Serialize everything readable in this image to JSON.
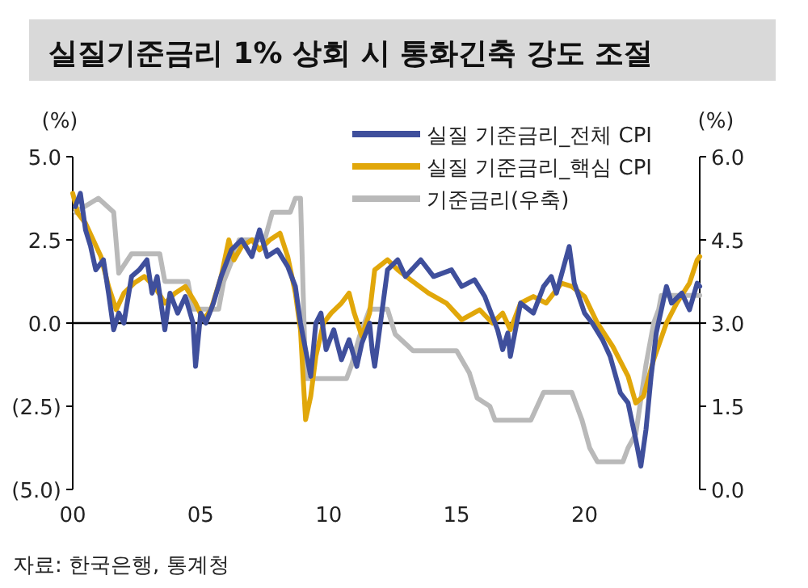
{
  "chart_data": {
    "type": "line",
    "title": "실질기준금리 1% 상회 시 통화긴축 강도 조절",
    "ylabel": "(%)",
    "y2label": "(%)",
    "annotations": [
      "자료: 한국은행, 통계청"
    ],
    "xlim": [
      2000,
      2024.5
    ],
    "xticks": [
      {
        "value": 2000,
        "label": "00"
      },
      {
        "value": 2005,
        "label": "05"
      },
      {
        "value": 2010,
        "label": "10"
      },
      {
        "value": 2015,
        "label": "15"
      },
      {
        "value": 2020,
        "label": "20"
      }
    ],
    "ylim": [
      -5,
      5
    ],
    "yticks": [
      {
        "value": 5,
        "label": "5.0"
      },
      {
        "value": 2.5,
        "label": "2.5"
      },
      {
        "value": 0,
        "label": "0.0"
      },
      {
        "value": -2.5,
        "label": "(2.5)"
      },
      {
        "value": -5,
        "label": "(5.0)"
      }
    ],
    "y2lim": [
      0,
      6
    ],
    "y2ticks": [
      {
        "value": 6,
        "label": "6.0"
      },
      {
        "value": 4.5,
        "label": "4.5"
      },
      {
        "value": 3,
        "label": "3.0"
      },
      {
        "value": 1.5,
        "label": "1.5"
      },
      {
        "value": 0,
        "label": "0.0"
      }
    ],
    "ref_lines": [
      {
        "axis": "y",
        "value": 0,
        "color": "#000000"
      }
    ],
    "legend": "top right",
    "grid": false,
    "series": [
      {
        "name": "실질 기준금리_전체 CPI",
        "color": "#3f4f9c",
        "x": [
          2000.1,
          2000.3,
          2000.5,
          2000.7,
          2000.9,
          2001.2,
          2001.4,
          2001.6,
          2001.8,
          2002.0,
          2002.3,
          2002.6,
          2002.9,
          2003.1,
          2003.3,
          2003.6,
          2003.8,
          2004.1,
          2004.4,
          2004.7,
          2004.8,
          2005.0,
          2005.2,
          2005.5,
          2005.8,
          2006.2,
          2006.6,
          2007.0,
          2007.3,
          2007.6,
          2008.0,
          2008.4,
          2008.7,
          2008.9,
          2009.1,
          2009.3,
          2009.5,
          2009.7,
          2009.9,
          2010.2,
          2010.5,
          2010.8,
          2011.1,
          2011.3,
          2011.6,
          2011.7,
          2011.8,
          2012.3,
          2012.7,
          2013.0,
          2013.6,
          2014.1,
          2014.8,
          2015.2,
          2015.7,
          2016.1,
          2016.6,
          2016.8,
          2017.0,
          2017.1,
          2017.5,
          2018.0,
          2018.4,
          2018.7,
          2018.9,
          2019.4,
          2019.6,
          2020.0,
          2020.3,
          2020.7,
          2021.0,
          2021.4,
          2021.7,
          2022.0,
          2022.2,
          2022.4,
          2022.6,
          2022.8,
          2023.2,
          2023.4,
          2023.8,
          2024.1,
          2024.4,
          2024.5
        ],
        "values": [
          3.5,
          3.9,
          2.8,
          2.3,
          1.6,
          1.9,
          0.9,
          -0.2,
          0.3,
          0.0,
          1.4,
          1.6,
          1.9,
          0.9,
          1.4,
          -0.2,
          0.9,
          0.3,
          0.8,
          0.0,
          -1.3,
          0.3,
          0.0,
          0.6,
          1.4,
          2.2,
          2.5,
          2.0,
          2.8,
          2.0,
          2.2,
          1.7,
          1.1,
          0.0,
          -0.8,
          -1.6,
          0.0,
          0.3,
          -0.8,
          -0.2,
          -1.1,
          -0.5,
          -1.3,
          -0.6,
          0.0,
          -0.8,
          -1.3,
          1.6,
          1.9,
          1.4,
          1.9,
          1.4,
          1.6,
          1.1,
          1.3,
          0.8,
          -0.2,
          -0.8,
          -0.3,
          -1.0,
          0.6,
          0.3,
          1.1,
          1.4,
          0.9,
          2.3,
          1.2,
          0.3,
          0.0,
          -0.5,
          -1.0,
          -2.1,
          -2.4,
          -3.5,
          -4.3,
          -3.2,
          -1.6,
          -0.3,
          1.1,
          0.6,
          0.9,
          0.4,
          1.2,
          1.1
        ]
      },
      {
        "name": "실질 기준금리_핵심 CPI",
        "color": "#e1a70a",
        "x": [
          2000.0,
          2000.2,
          2000.5,
          2000.8,
          2001.1,
          2001.4,
          2001.7,
          2002.0,
          2002.4,
          2002.8,
          2003.2,
          2003.6,
          2004.0,
          2004.4,
          2004.8,
          2005.1,
          2005.4,
          2005.8,
          2006.1,
          2006.3,
          2006.6,
          2007.0,
          2007.3,
          2007.7,
          2008.1,
          2008.4,
          2008.7,
          2008.9,
          2009.0,
          2009.1,
          2009.3,
          2009.5,
          2009.8,
          2010.1,
          2010.5,
          2010.8,
          2011.0,
          2011.3,
          2011.6,
          2011.8,
          2012.3,
          2012.7,
          2013.2,
          2013.9,
          2014.6,
          2015.2,
          2015.9,
          2016.4,
          2016.8,
          2017.1,
          2017.5,
          2018.0,
          2018.5,
          2019.1,
          2019.5,
          2020.0,
          2020.5,
          2021.1,
          2021.7,
          2022.0,
          2022.3,
          2022.7,
          2023.2,
          2023.6,
          2024.1,
          2024.4,
          2024.5
        ],
        "values": [
          3.9,
          3.3,
          3.0,
          2.5,
          2.0,
          1.1,
          0.4,
          0.9,
          1.2,
          1.4,
          1.1,
          0.6,
          0.9,
          1.1,
          0.6,
          0.1,
          0.4,
          1.4,
          2.5,
          1.9,
          2.3,
          2.5,
          2.2,
          2.5,
          2.7,
          2.0,
          0.9,
          -0.2,
          -1.6,
          -2.9,
          -2.2,
          -1.0,
          -0.0,
          0.3,
          0.6,
          0.9,
          0.3,
          -0.4,
          0.3,
          1.6,
          1.9,
          1.6,
          1.3,
          0.9,
          0.6,
          0.1,
          0.4,
          -0.0,
          0.3,
          -0.2,
          0.6,
          0.8,
          0.6,
          1.2,
          1.1,
          0.8,
          -0.0,
          -0.7,
          -1.6,
          -2.4,
          -2.2,
          -1.1,
          -0.0,
          0.6,
          1.2,
          1.9,
          2.0
        ]
      },
      {
        "name": "기준금리(우축)",
        "color": "#b9b9b9",
        "axis": "y2",
        "x": [
          2000.1,
          2001.0,
          2001.6,
          2001.8,
          2002.3,
          2003.4,
          2003.6,
          2004.5,
          2004.7,
          2005.7,
          2005.9,
          2006.2,
          2006.5,
          2007.5,
          2007.8,
          2008.5,
          2008.7,
          2008.9,
          2009.1,
          2010.7,
          2010.9,
          2011.2,
          2011.6,
          2012.3,
          2012.6,
          2013.3,
          2015.0,
          2015.5,
          2015.8,
          2016.3,
          2016.5,
          2017.9,
          2018.4,
          2019.5,
          2019.7,
          2019.9,
          2020.2,
          2020.5,
          2021.5,
          2021.7,
          2022.0,
          2022.4,
          2022.7,
          2022.9,
          2023.0,
          2024.5
        ],
        "values": [
          5.0,
          5.25,
          5.0,
          3.9,
          4.25,
          4.25,
          3.75,
          3.75,
          3.25,
          3.25,
          3.75,
          4.1,
          4.5,
          4.5,
          5.0,
          5.0,
          5.25,
          5.25,
          2.0,
          2.0,
          2.25,
          2.75,
          3.25,
          3.25,
          2.8,
          2.5,
          2.5,
          2.1,
          1.65,
          1.5,
          1.25,
          1.25,
          1.75,
          1.75,
          1.5,
          1.25,
          0.75,
          0.5,
          0.5,
          0.75,
          1.0,
          2.25,
          3.0,
          3.25,
          3.5,
          3.5
        ]
      }
    ]
  }
}
